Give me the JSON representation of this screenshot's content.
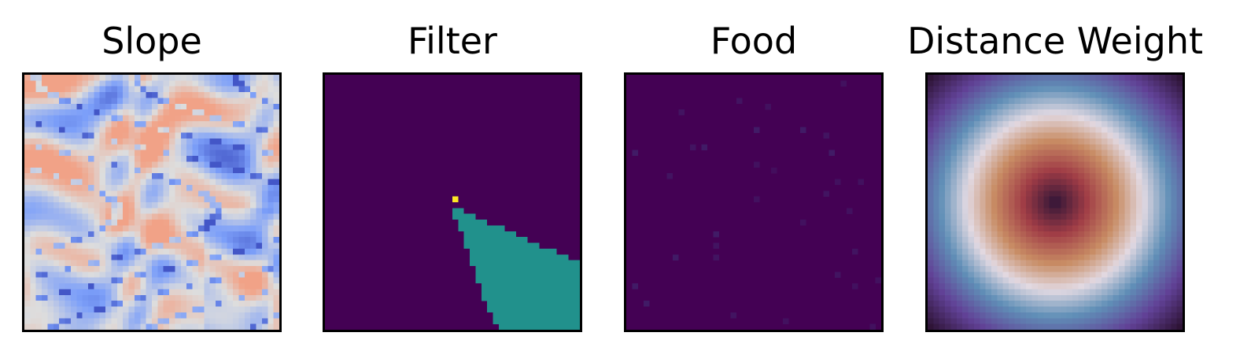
{
  "chart_data": [
    {
      "type": "heatmap",
      "title": "Slope",
      "colormap": "coolwarm",
      "grid_size": 44,
      "axes_visible": false,
      "vmin": 0,
      "vmax": 1,
      "description": "smooth terrain slope field; mostly light blues with dark-blue ridge lines and a few faint orange patches"
    },
    {
      "type": "heatmap",
      "title": "Filter",
      "colormap": "viridis",
      "grid_size": 44,
      "axes_visible": false,
      "vmin": 0,
      "vmax": 2,
      "background_value": 0,
      "cone_value": 1,
      "apex_value": 2,
      "apex_cell": [
        21,
        22
      ],
      "cone_boundary_rows": [
        {
          "row": 23,
          "left": 22,
          "right": 23
        },
        {
          "row": 24,
          "left": 22,
          "right": 25
        },
        {
          "row": 25,
          "left": 23,
          "right": 27
        },
        {
          "row": 26,
          "left": 23,
          "right": 30
        },
        {
          "row": 27,
          "left": 24,
          "right": 32
        },
        {
          "row": 28,
          "left": 24,
          "right": 34
        },
        {
          "row": 29,
          "left": 24,
          "right": 36
        },
        {
          "row": 30,
          "left": 25,
          "right": 39
        },
        {
          "row": 31,
          "left": 25,
          "right": 41
        },
        {
          "row": 32,
          "left": 25,
          "right": 43
        },
        {
          "row": 33,
          "left": 26,
          "right": 43
        },
        {
          "row": 34,
          "left": 26,
          "right": 43
        },
        {
          "row": 35,
          "left": 26,
          "right": 43
        },
        {
          "row": 36,
          "left": 27,
          "right": 43
        },
        {
          "row": 37,
          "left": 27,
          "right": 43
        },
        {
          "row": 38,
          "left": 27,
          "right": 43
        },
        {
          "row": 39,
          "left": 28,
          "right": 43
        },
        {
          "row": 40,
          "left": 28,
          "right": 43
        },
        {
          "row": 41,
          "left": 29,
          "right": 43
        },
        {
          "row": 42,
          "left": 29,
          "right": 43
        },
        {
          "row": 43,
          "left": 30,
          "right": 43
        }
      ]
    },
    {
      "type": "heatmap",
      "title": "Food",
      "colormap": "viridis",
      "grid_size": 44,
      "axes_visible": false,
      "vmin": 0,
      "vmax": 1,
      "background_value": 0,
      "food_cells": [
        {
          "row": 1,
          "col": 37,
          "value": 0.05
        },
        {
          "row": 4,
          "col": 19,
          "value": 0.06
        },
        {
          "row": 5,
          "col": 24,
          "value": 0.05
        },
        {
          "row": 6,
          "col": 9,
          "value": 0.06
        },
        {
          "row": 9,
          "col": 22,
          "value": 0.08
        },
        {
          "row": 9,
          "col": 30,
          "value": 0.08
        },
        {
          "row": 10,
          "col": 34,
          "value": 0.06
        },
        {
          "row": 12,
          "col": 11,
          "value": 0.06
        },
        {
          "row": 12,
          "col": 13,
          "value": 0.08
        },
        {
          "row": 13,
          "col": 1,
          "value": 0.08
        },
        {
          "row": 13,
          "col": 35,
          "value": 0.08
        },
        {
          "row": 15,
          "col": 22,
          "value": 0.05
        },
        {
          "row": 16,
          "col": 25,
          "value": 0.04
        },
        {
          "row": 17,
          "col": 7,
          "value": 0.06
        },
        {
          "row": 18,
          "col": 36,
          "value": 0.05
        },
        {
          "row": 18,
          "col": 40,
          "value": 0.05
        },
        {
          "row": 20,
          "col": 34,
          "value": 0.06
        },
        {
          "row": 21,
          "col": 22,
          "value": 0.05
        },
        {
          "row": 23,
          "col": 38,
          "value": 0.05
        },
        {
          "row": 25,
          "col": 30,
          "value": 0.05
        },
        {
          "row": 27,
          "col": 15,
          "value": 0.08
        },
        {
          "row": 29,
          "col": 15,
          "value": 0.06
        },
        {
          "row": 30,
          "col": 39,
          "value": 0.06
        },
        {
          "row": 31,
          "col": 8,
          "value": 0.08
        },
        {
          "row": 31,
          "col": 15,
          "value": 0.06
        },
        {
          "row": 34,
          "col": 36,
          "value": 0.06
        },
        {
          "row": 35,
          "col": 43,
          "value": 0.05
        },
        {
          "row": 36,
          "col": 1,
          "value": 0.08
        },
        {
          "row": 36,
          "col": 39,
          "value": 0.05
        },
        {
          "row": 39,
          "col": 3,
          "value": 0.08
        },
        {
          "row": 41,
          "col": 18,
          "value": 0.06
        },
        {
          "row": 42,
          "col": 27,
          "value": 0.05
        },
        {
          "row": 43,
          "col": 42,
          "value": 0.05
        }
      ]
    },
    {
      "type": "heatmap",
      "title": "Distance Weight",
      "colormap": "twilight_shifted",
      "grid_size": 44,
      "axes_visible": false,
      "pattern": "radial rings centred on grid",
      "center": [
        21.5,
        21.5
      ]
    }
  ]
}
